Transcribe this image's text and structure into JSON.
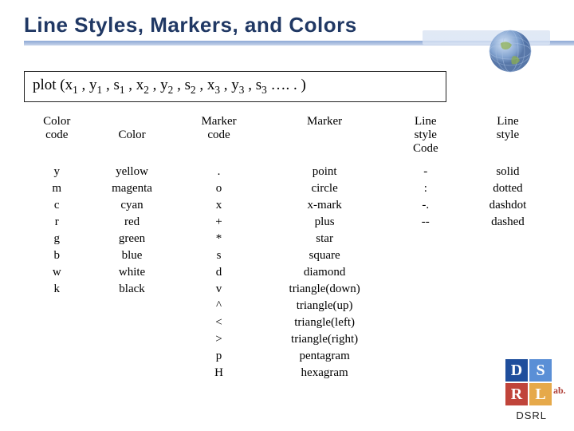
{
  "title": "Line Styles, Markers, and Colors",
  "syntax_prefix": "plot (x",
  "syntax_parts": [
    "1",
    " , y",
    "1",
    " , s",
    "1",
    " ,   x",
    "2",
    " , y",
    "2",
    " , s",
    "2",
    " ,   x",
    "3",
    " , y",
    "3",
    " , s",
    "3",
    " …. . )"
  ],
  "headers": {
    "col1a": "Color",
    "col1b": "code",
    "col2": "Color",
    "col3a": "Marker",
    "col3b": "code",
    "col4": "Marker",
    "col5a": "Line",
    "col5b": "style",
    "col5c": "Code",
    "col6a": "Line",
    "col6b": "style"
  },
  "rows": [
    {
      "cc": "y",
      "cn": "yellow",
      "mc": ".",
      "mn": "point",
      "lc": "-",
      "ln": "solid"
    },
    {
      "cc": "m",
      "cn": "magenta",
      "mc": "o",
      "mn": "circle",
      "lc": ":",
      "ln": "dotted"
    },
    {
      "cc": "c",
      "cn": "cyan",
      "mc": "x",
      "mn": "x-mark",
      "lc": "-.",
      "ln": "dashdot"
    },
    {
      "cc": "r",
      "cn": "red",
      "mc": "+",
      "mn": "plus",
      "lc": "--",
      "ln": "dashed"
    },
    {
      "cc": "g",
      "cn": "green",
      "mc": "*",
      "mn": "star",
      "lc": "",
      "ln": ""
    },
    {
      "cc": "b",
      "cn": "blue",
      "mc": "s",
      "mn": "square",
      "lc": "",
      "ln": ""
    },
    {
      "cc": "w",
      "cn": "white",
      "mc": "d",
      "mn": "diamond",
      "lc": "",
      "ln": ""
    },
    {
      "cc": "k",
      "cn": "black",
      "mc": "v",
      "mn": "triangle(down)",
      "lc": "",
      "ln": ""
    },
    {
      "cc": "",
      "cn": "",
      "mc": "^",
      "mn": "triangle(up)",
      "lc": "",
      "ln": ""
    },
    {
      "cc": "",
      "cn": "",
      "mc": "<",
      "mn": "triangle(left)",
      "lc": "",
      "ln": ""
    },
    {
      "cc": "",
      "cn": "",
      "mc": ">",
      "mn": "triangle(right)",
      "lc": "",
      "ln": ""
    },
    {
      "cc": "",
      "cn": "",
      "mc": "p",
      "mn": "pentagram",
      "lc": "",
      "ln": ""
    },
    {
      "cc": "",
      "cn": "",
      "mc": "H",
      "mn": "hexagram",
      "lc": "",
      "ln": ""
    }
  ],
  "logo": {
    "d": "D",
    "s": "S",
    "r": "R",
    "l": "L",
    "side": "ab."
  },
  "footer": "DSRL",
  "colors": {
    "title": "#203864",
    "logo_d": "#1f4e9c",
    "logo_s": "#5a8fd6",
    "logo_r": "#c0443a",
    "logo_l": "#e6a94a"
  }
}
